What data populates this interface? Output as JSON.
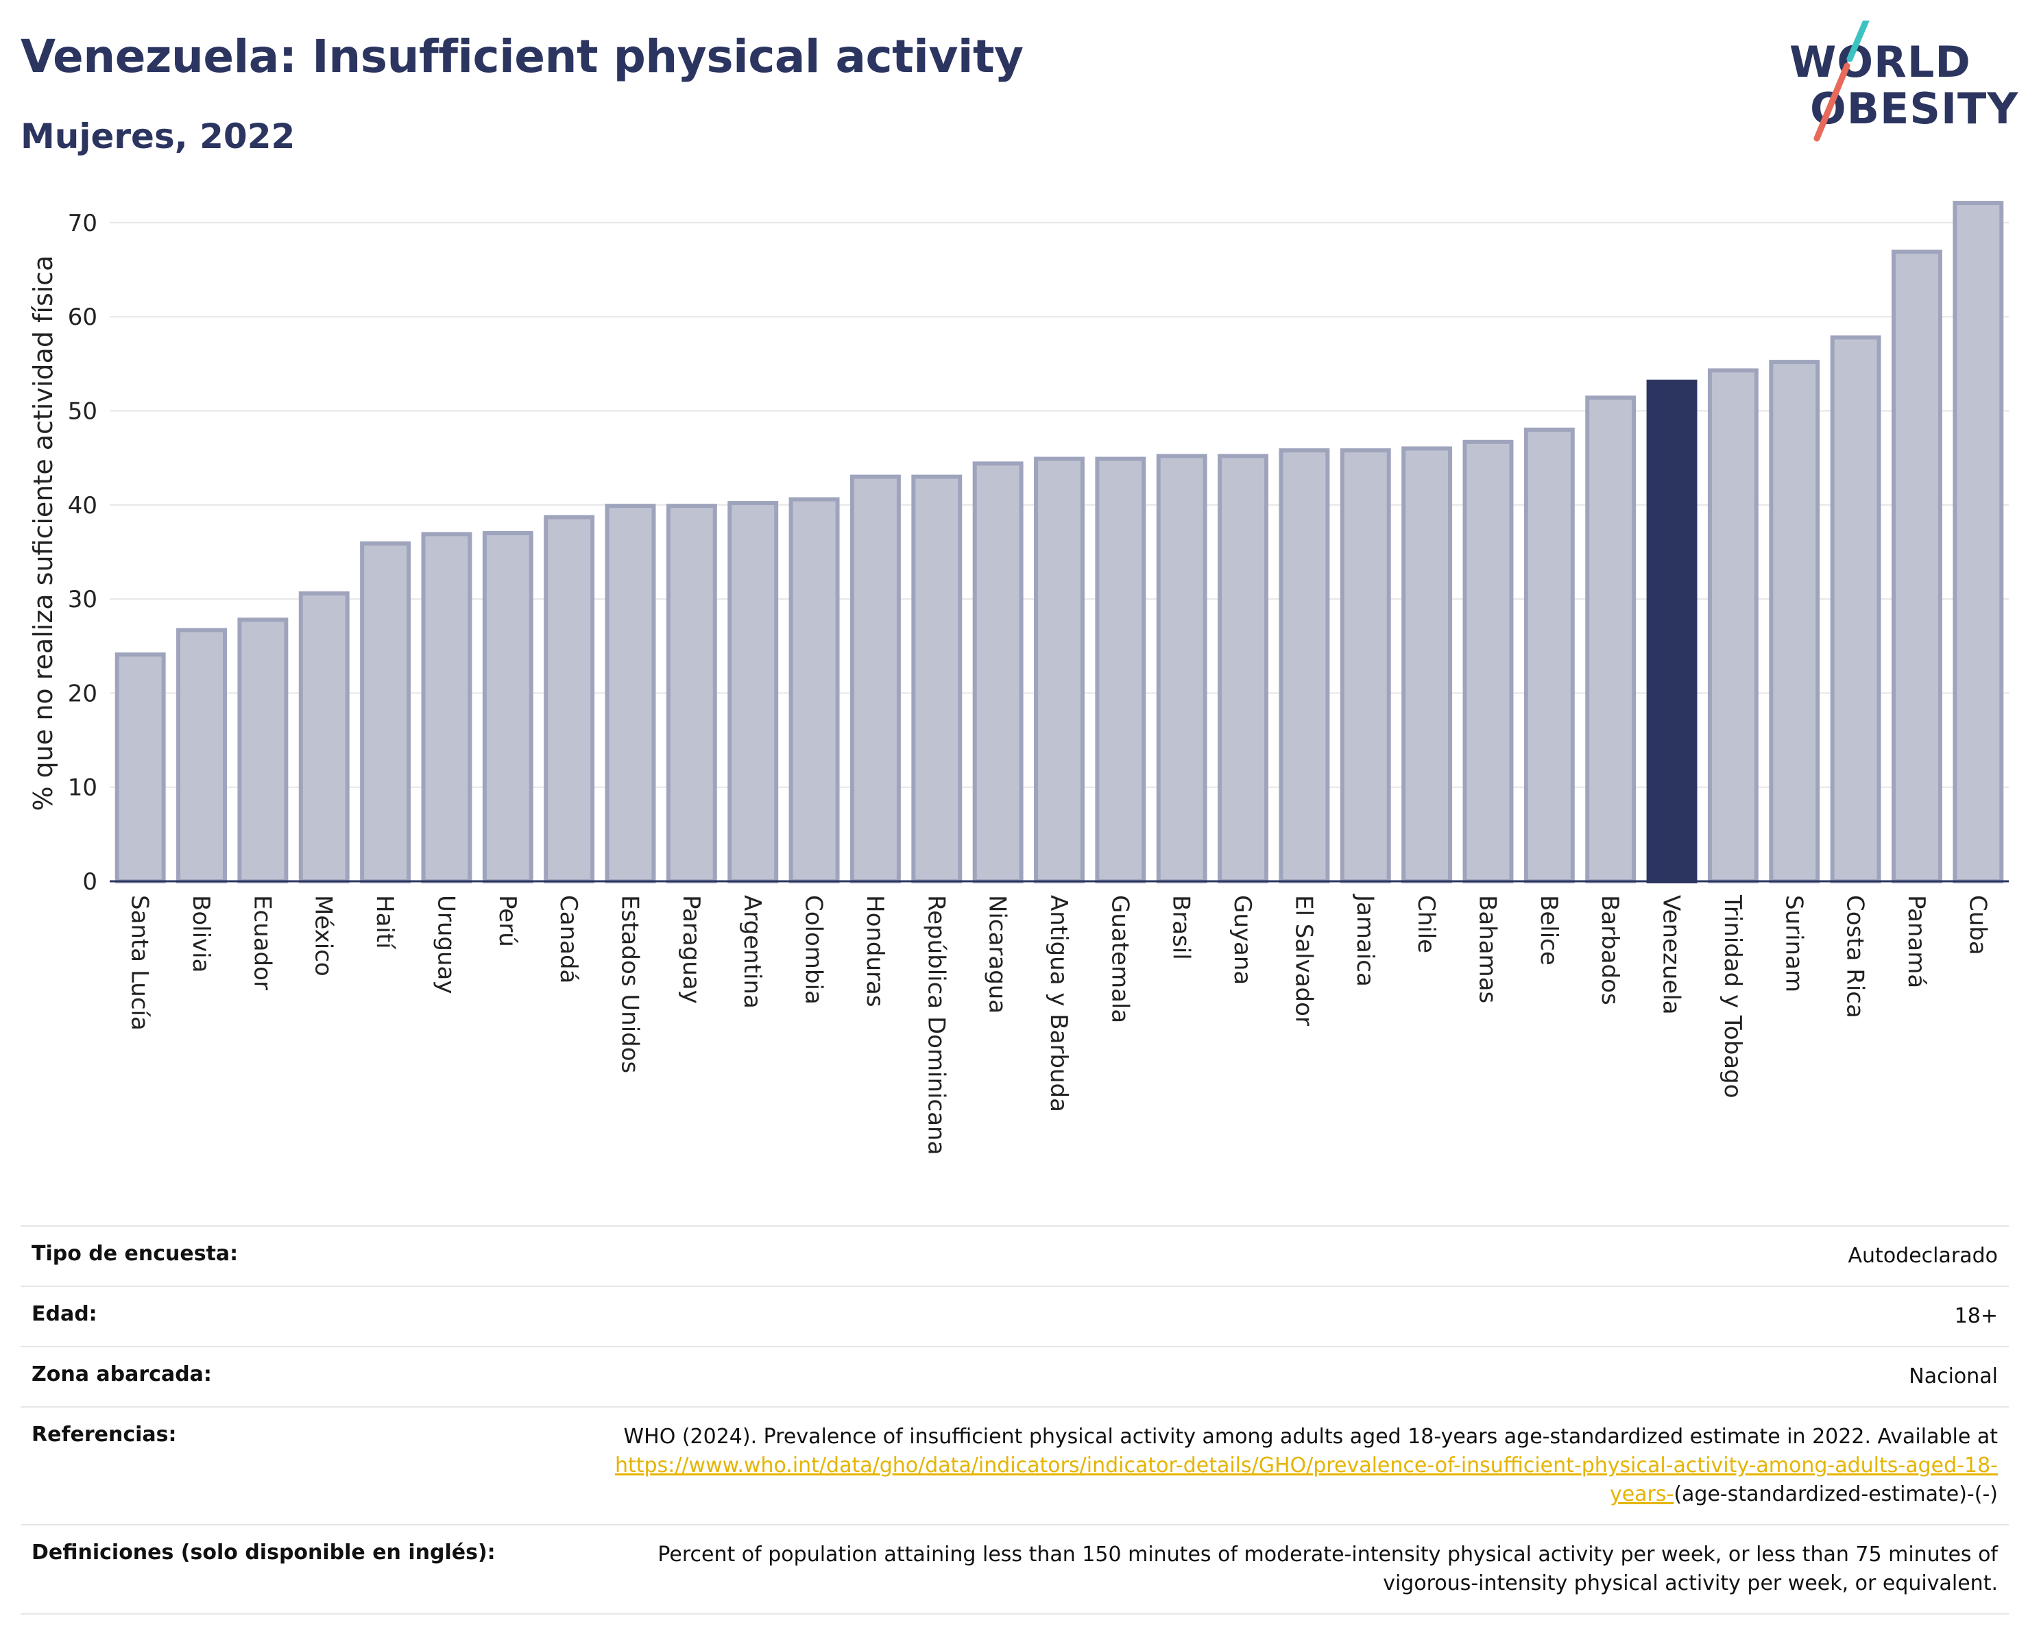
{
  "header": {
    "title": "Venezuela: Insufficient physical activity",
    "subtitle": "Mujeres, 2022"
  },
  "logo": {
    "line1": "WORLD",
    "line2": "OBESITY",
    "colors": {
      "navy": "#2b3560",
      "teal": "#3cc2c0",
      "coral": "#e86a5a"
    }
  },
  "colors": {
    "bar_fill": "#bfc2d1",
    "bar_stroke": "#9fa4bd",
    "highlight": "#2b3560",
    "grid": "#e6e6e6",
    "axis": "#2b3560",
    "link": "#e5b400"
  },
  "chart_data": {
    "type": "bar",
    "ylabel": "% que no realiza suficiente actividad física",
    "ylim": [
      0,
      74
    ],
    "yticks": [
      0,
      10,
      20,
      30,
      40,
      50,
      60,
      70
    ],
    "grid": true,
    "highlight": "Venezuela",
    "categories": [
      "Santa Lucía",
      "Bolivia",
      "Ecuador",
      "México",
      "Haití",
      "Uruguay",
      "Perú",
      "Canadá",
      "Estados Unidos",
      "Paraguay",
      "Argentina",
      "Colombia",
      "Honduras",
      "República Dominicana",
      "Nicaragua",
      "Antigua y Barbuda",
      "Guatemala",
      "Brasil",
      "Guyana",
      "El Salvador",
      "Jamaica",
      "Chile",
      "Bahamas",
      "Belice",
      "Barbados",
      "Venezuela",
      "Trinidad y Tobago",
      "Surinam",
      "Costa Rica",
      "Panamá",
      "Cuba"
    ],
    "values": [
      24.1,
      26.7,
      27.8,
      30.6,
      35.9,
      36.9,
      37.0,
      38.7,
      39.9,
      39.9,
      40.2,
      40.6,
      43.0,
      43.0,
      44.4,
      44.9,
      44.9,
      45.2,
      45.2,
      45.8,
      45.8,
      46.0,
      46.7,
      48.0,
      51.4,
      53.1,
      54.3,
      55.2,
      57.8,
      66.9,
      72.1
    ]
  },
  "meta": [
    {
      "label": "Tipo de encuesta:",
      "value": "Autodeclarado"
    },
    {
      "label": "Edad:",
      "value": "18+"
    },
    {
      "label": "Zona abarcada:",
      "value": "Nacional"
    },
    {
      "label": "Referencias:",
      "value_pre": "WHO (2024). Prevalence of insufficient physical activity among adults aged 18-years age-standardized estimate in 2022. Available at",
      "link_text": "https://www.who.int/data/gho/data/indicators/indicator-details/GHO/prevalence-of-insufficient-physical-activity-among-adults-aged-18-years-",
      "value_post": "(age-standardized-estimate)-(-)"
    },
    {
      "label": "Definiciones (solo disponible en inglés):",
      "value": "Percent of population attaining less than 150 minutes of moderate-intensity physical activity per week, or less than 75 minutes of vigorous-intensity physical activity per week, or equivalent."
    }
  ]
}
